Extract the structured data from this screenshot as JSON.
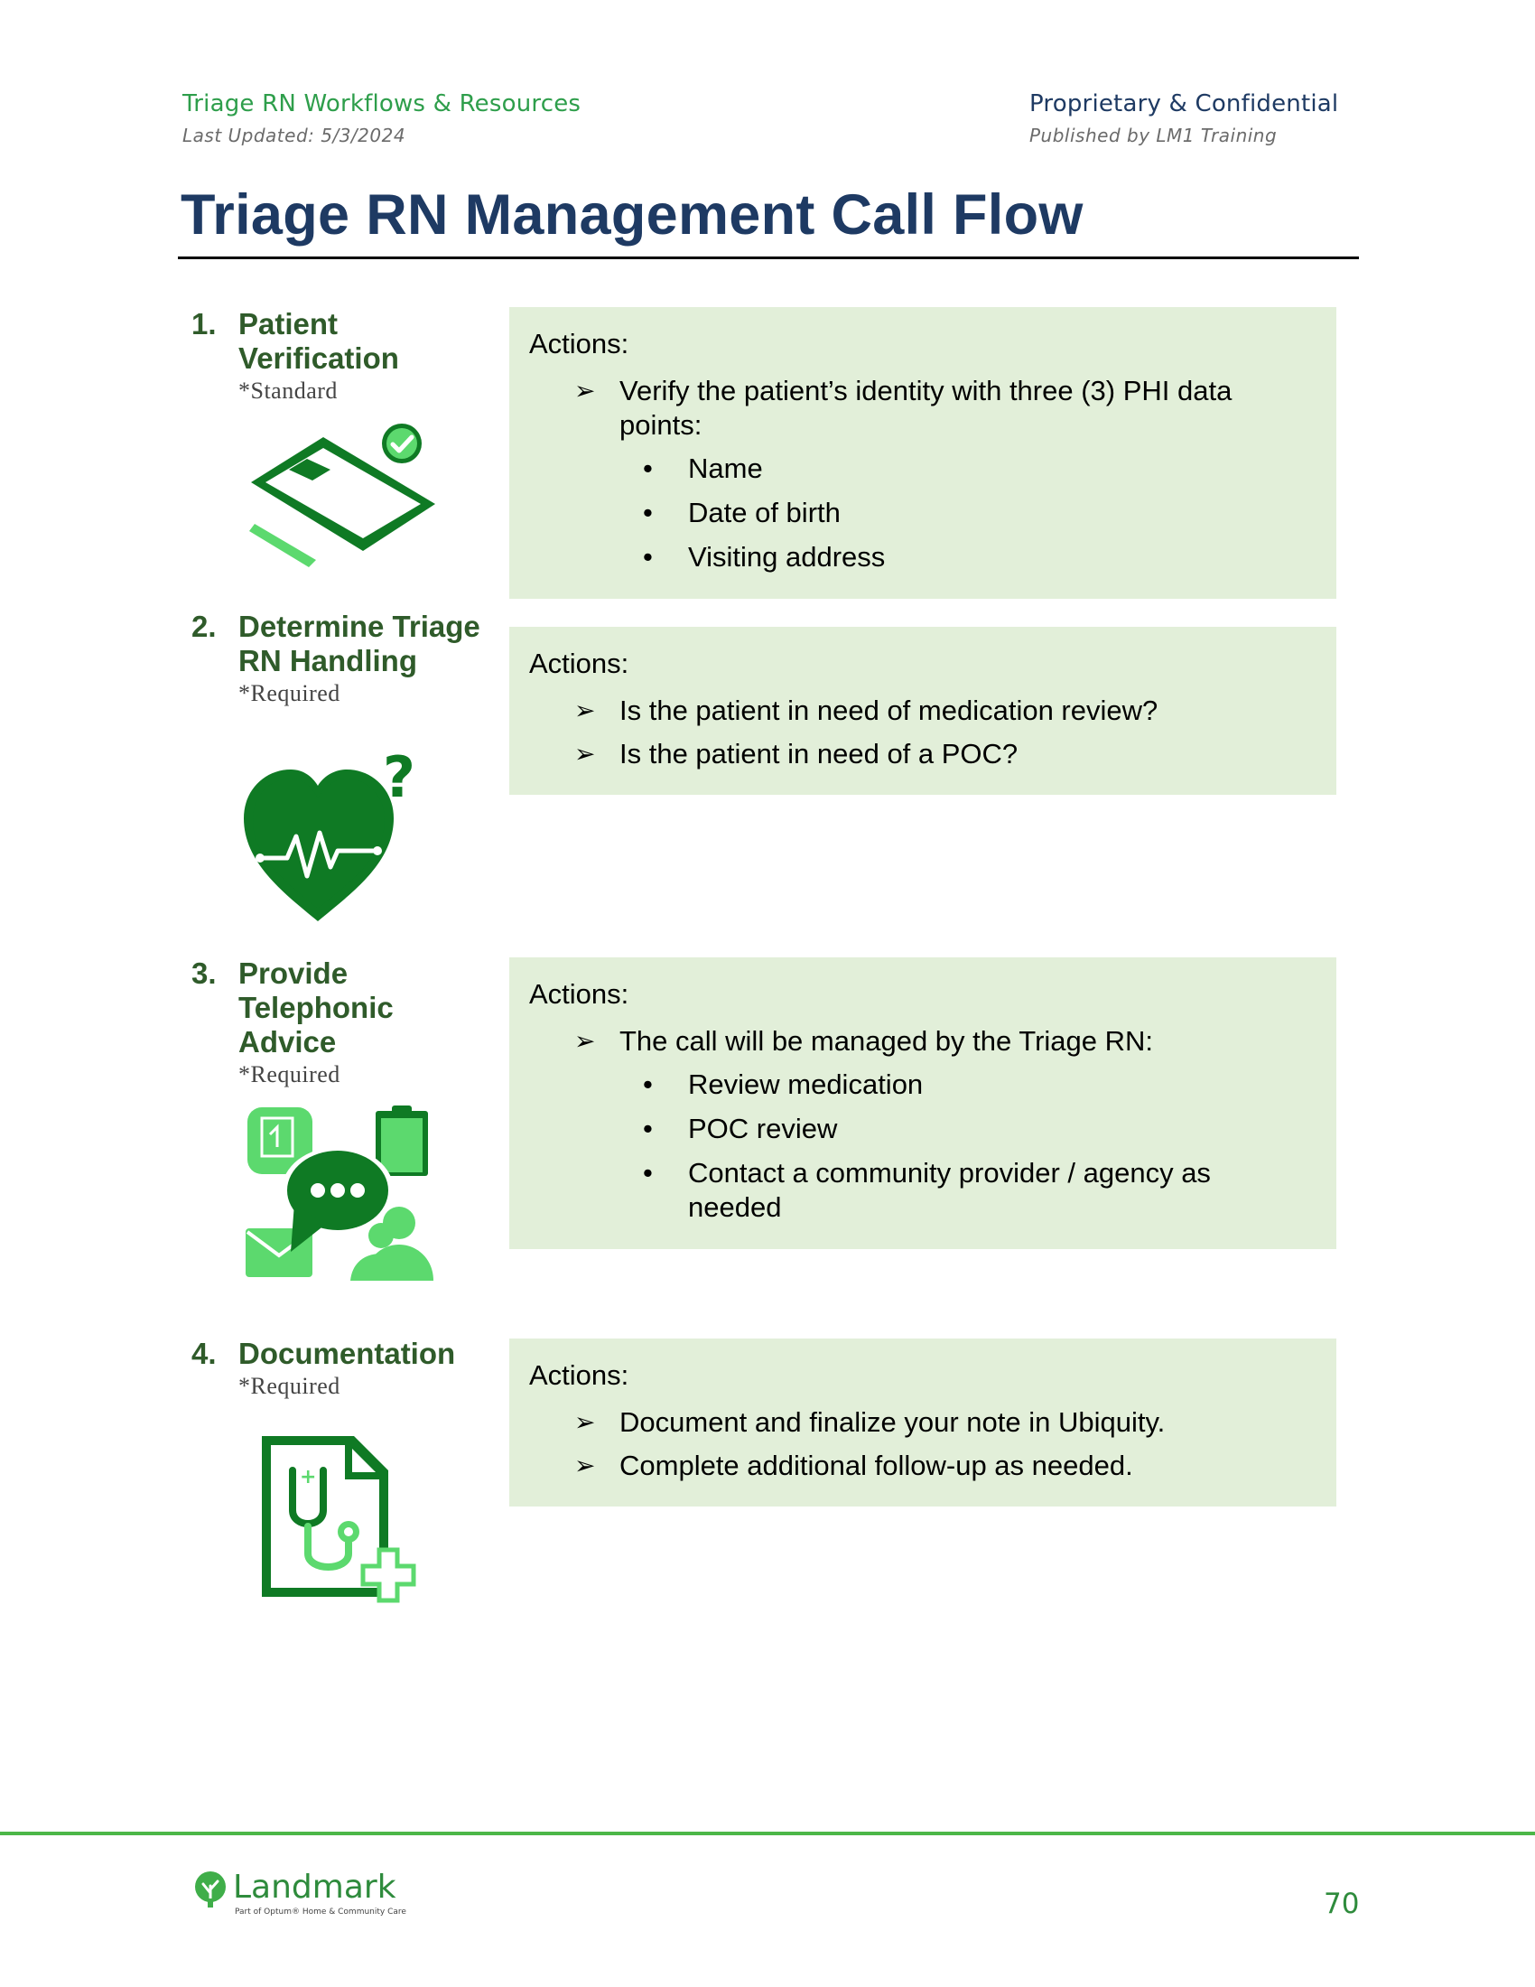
{
  "header": {
    "left_title": "Triage RN Workflows & Resources",
    "left_sub": "Last Updated: 5/3/2024",
    "right_title": "Proprietary & Confidential",
    "right_sub": "Published by LM1 Training"
  },
  "page_title": "Triage RN Management Call Flow",
  "steps": [
    {
      "number": "1.",
      "label": "Patient Verification",
      "note": "*Standard",
      "icon": "clipboard-check-icon",
      "actions_label": "Actions:",
      "items": [
        {
          "text": "Verify the patient’s identity with three (3) PHI data points:",
          "subitems": [
            "Name",
            "Date of birth",
            "Visiting address"
          ]
        }
      ]
    },
    {
      "number": "2.",
      "label": "Determine Triage RN Handling",
      "note": "*Required",
      "icon": "heart-pulse-question-icon",
      "actions_label": "Actions:",
      "items": [
        {
          "text": "Is the patient in need of medication review?"
        },
        {
          "text": "Is the patient in need of a POC?"
        }
      ]
    },
    {
      "number": "3.",
      "label": "Provide Telephonic Advice",
      "note": "*Required",
      "icon": "communication-icon",
      "actions_label": "Actions:",
      "items": [
        {
          "text": "The call will be managed by the Triage RN:",
          "subitems": [
            "Review medication",
            "POC review",
            "Contact a community provider / agency as needed"
          ]
        }
      ]
    },
    {
      "number": "4.",
      "label": "Documentation",
      "note": "*Required",
      "icon": "medical-document-icon",
      "actions_label": "Actions:",
      "items": [
        {
          "text": "Document and finalize your note in Ubiquity."
        },
        {
          "text": "Complete additional follow-up as needed."
        }
      ]
    }
  ],
  "footer": {
    "logo_name": "Landmark",
    "logo_tagline": "Part of Optum® Home & Community Care",
    "page_number": "70"
  },
  "colors": {
    "title": "#1e3a63",
    "header_left": "#2e9e4b",
    "step_label": "#2f5b2a",
    "action_box": "#e2efd9",
    "icon_dark": "#0f7a24",
    "icon_light": "#5cd96e",
    "footer_rule": "#4cb748"
  }
}
